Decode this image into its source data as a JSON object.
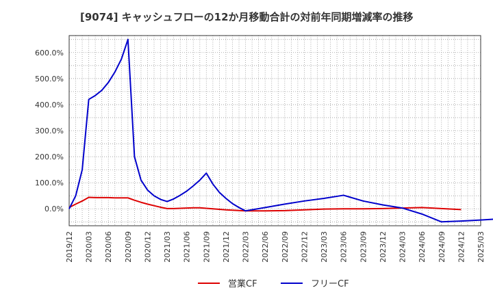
{
  "chart_data": {
    "type": "line",
    "title": "[9074]  キャッシュフローの12か月移動合計の対前年同期増減率の推移",
    "xlabel": "",
    "ylabel": "",
    "ylim": [
      -65,
      665
    ],
    "yticks": [
      0,
      100,
      200,
      300,
      400,
      500,
      600
    ],
    "ytick_labels": [
      "0.0%",
      "100.0%",
      "200.0%",
      "300.0%",
      "400.0%",
      "500.0%",
      "600.0%"
    ],
    "xticks": [
      "2019/12",
      "2020/03",
      "2020/06",
      "2020/09",
      "2020/12",
      "2021/03",
      "2021/06",
      "2021/09",
      "2021/12",
      "2022/03",
      "2022/06",
      "2022/09",
      "2022/12",
      "2023/03",
      "2023/06",
      "2023/09",
      "2023/12",
      "2024/03",
      "2024/06",
      "2024/09",
      "2024/12",
      "2025/03"
    ],
    "x_start": "2019/12",
    "grid": true,
    "legend_position": "bottom",
    "series": [
      {
        "name": "営業CF",
        "color": "#dd0000",
        "points": [
          [
            0,
            5
          ],
          [
            1,
            18
          ],
          [
            2,
            30
          ],
          [
            3,
            44
          ],
          [
            4,
            43
          ],
          [
            5,
            43
          ],
          [
            6,
            43
          ],
          [
            7,
            42
          ],
          [
            8,
            42
          ],
          [
            9,
            42
          ],
          [
            10,
            33
          ],
          [
            11,
            25
          ],
          [
            12,
            18
          ],
          [
            13,
            12
          ],
          [
            14,
            6
          ],
          [
            15,
            1
          ],
          [
            16,
            1
          ],
          [
            17,
            2
          ],
          [
            18,
            3
          ],
          [
            19,
            4
          ],
          [
            20,
            4
          ],
          [
            21,
            2
          ],
          [
            24,
            -4
          ],
          [
            27,
            -8
          ],
          [
            30,
            -8
          ],
          [
            33,
            -7
          ],
          [
            36,
            -4
          ],
          [
            39,
            -1
          ],
          [
            42,
            0
          ],
          [
            45,
            0
          ],
          [
            48,
            1
          ],
          [
            51,
            3
          ],
          [
            54,
            5
          ],
          [
            57,
            1
          ],
          [
            60,
            -3
          ]
        ]
      },
      {
        "name": "フリーCF",
        "color": "#0000cc",
        "points": [
          [
            0,
            0
          ],
          [
            1,
            50
          ],
          [
            2,
            150
          ],
          [
            3,
            420
          ],
          [
            4,
            435
          ],
          [
            5,
            455
          ],
          [
            6,
            485
          ],
          [
            7,
            525
          ],
          [
            8,
            575
          ],
          [
            9,
            650
          ],
          [
            10,
            200
          ],
          [
            11,
            110
          ],
          [
            12,
            72
          ],
          [
            13,
            50
          ],
          [
            14,
            36
          ],
          [
            15,
            28
          ],
          [
            16,
            38
          ],
          [
            17,
            52
          ],
          [
            18,
            68
          ],
          [
            19,
            88
          ],
          [
            20,
            110
          ],
          [
            21,
            137
          ],
          [
            22,
            95
          ],
          [
            23,
            63
          ],
          [
            24,
            40
          ],
          [
            25,
            20
          ],
          [
            26,
            5
          ],
          [
            27,
            -8
          ],
          [
            30,
            5
          ],
          [
            33,
            18
          ],
          [
            36,
            30
          ],
          [
            39,
            40
          ],
          [
            42,
            52
          ],
          [
            45,
            30
          ],
          [
            48,
            15
          ],
          [
            51,
            3
          ],
          [
            54,
            -20
          ],
          [
            57,
            -50
          ],
          [
            60,
            -47
          ],
          [
            63,
            -43
          ],
          [
            65,
            -40
          ]
        ]
      }
    ]
  }
}
